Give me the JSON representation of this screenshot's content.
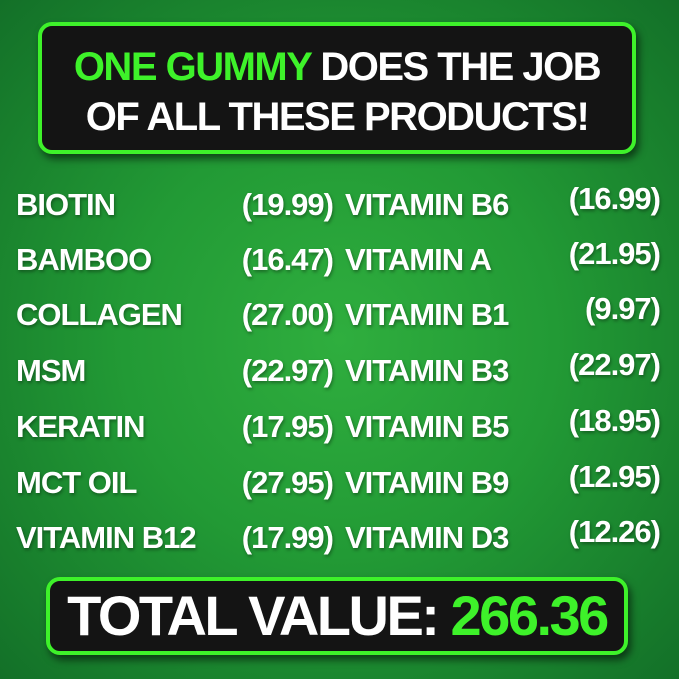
{
  "headline": {
    "line1_highlight": "ONE GUMMY",
    "line1_rest": "DOES THE JOB",
    "line2": "OF ALL THESE PRODUCTS!"
  },
  "colors": {
    "accent": "#3ef22a",
    "box": "#141414",
    "background": "#229a35"
  },
  "products": [
    {
      "left_name": "BIOTIN",
      "left_price": "(19.99)",
      "right_name": "VITAMIN B6",
      "right_price": "(16.99)"
    },
    {
      "left_name": "BAMBOO",
      "left_price": "(16.47)",
      "right_name": "VITAMIN A",
      "right_price": "(21.95)"
    },
    {
      "left_name": "COLLAGEN",
      "left_price": "(27.00)",
      "right_name": "VITAMIN B1",
      "right_price": "(9.97)"
    },
    {
      "left_name": "MSM",
      "left_price": "(22.97)",
      "right_name": "VITAMIN B3",
      "right_price": "(22.97)"
    },
    {
      "left_name": "KERATIN",
      "left_price": "(17.95)",
      "right_name": "VITAMIN B5",
      "right_price": "(18.95)"
    },
    {
      "left_name": "MCT OIL",
      "left_price": "(27.95)",
      "right_name": "VITAMIN B9",
      "right_price": "(12.95)"
    },
    {
      "left_name": "VITAMIN B12",
      "left_price": "(17.99)",
      "right_name": "VITAMIN D3",
      "right_price": "(12.26)"
    }
  ],
  "total": {
    "label": "TOTAL VALUE:",
    "value": "266.36"
  }
}
